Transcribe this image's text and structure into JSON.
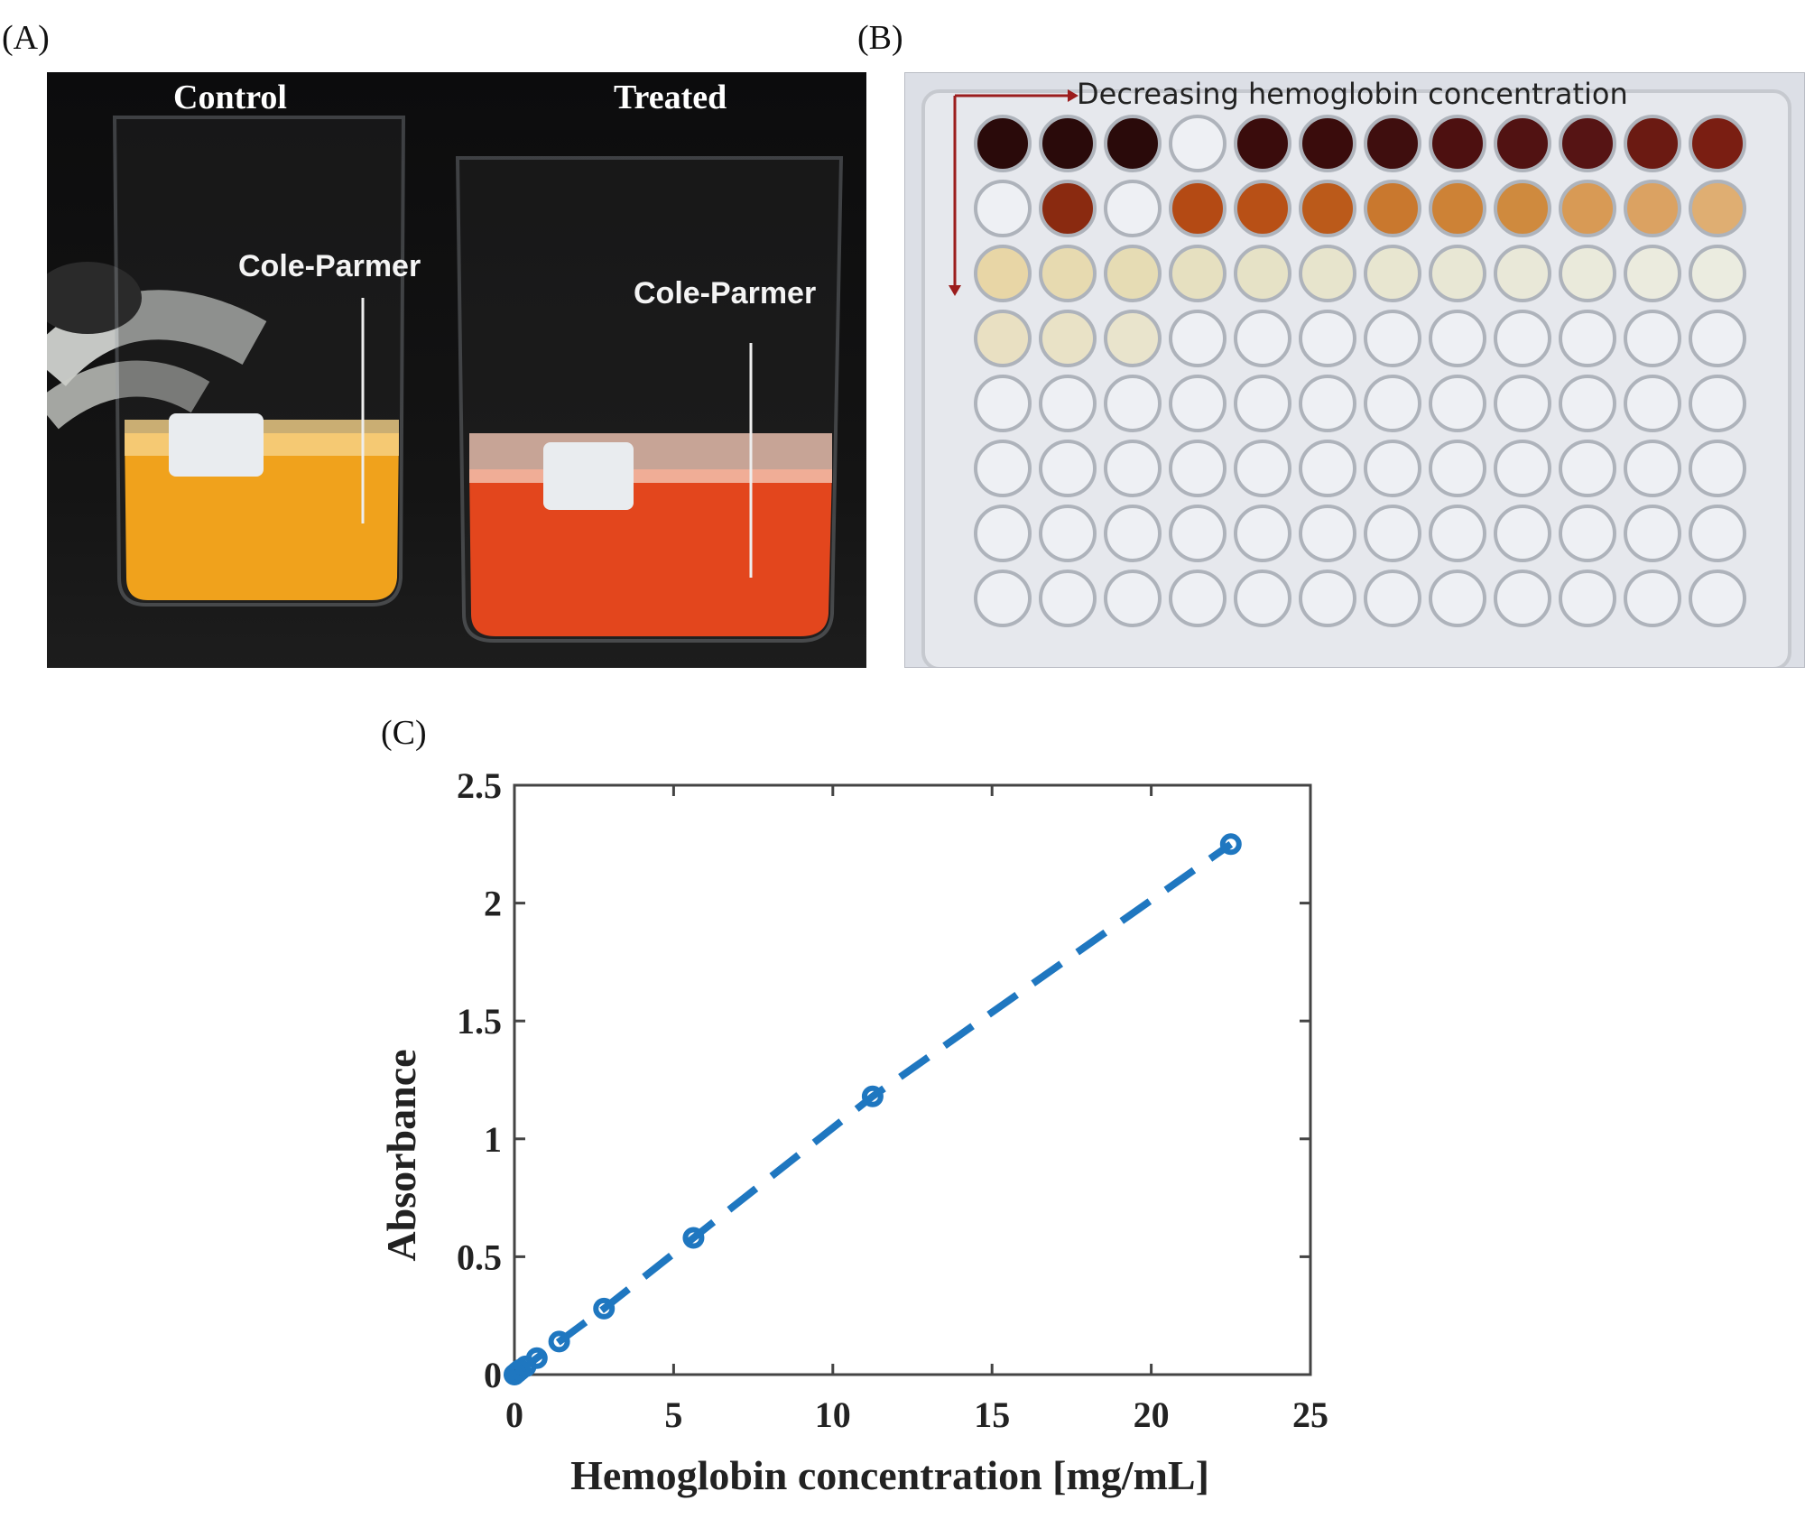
{
  "panels": {
    "a_label": "(A)",
    "b_label": "(B)",
    "c_label": "(C)"
  },
  "photo_a": {
    "control_label": "Control",
    "treated_label": "Treated",
    "brand_text": "Cole-Parmer"
  },
  "photo_b": {
    "arrow_text": "Decreasing hemoglobin concentration"
  },
  "colors": {
    "series": "#1f77c0",
    "axis": "#444444",
    "control_liquid": "#f0a21c",
    "treated_liquid": "#e3461d"
  },
  "chart_data": {
    "type": "scatter",
    "xlabel": "Hemoglobin concentration [mg/mL]",
    "ylabel": "Absorbance",
    "xlim": [
      0,
      25
    ],
    "ylim": [
      0,
      2.5
    ],
    "xticks": [
      "0",
      "5",
      "10",
      "15",
      "20",
      "25"
    ],
    "yticks": [
      "0",
      "0.5",
      "1",
      "1.5",
      "2",
      "2.5"
    ],
    "grid": false,
    "line_style": "dashed",
    "series": [
      {
        "x": [
          0,
          0.088,
          0.176,
          0.352,
          0.703,
          1.406,
          2.813,
          5.625,
          11.25,
          22.5
        ],
        "y": [
          0.0,
          0.01,
          0.02,
          0.035,
          0.07,
          0.14,
          0.28,
          0.58,
          1.18,
          2.25
        ]
      }
    ]
  }
}
